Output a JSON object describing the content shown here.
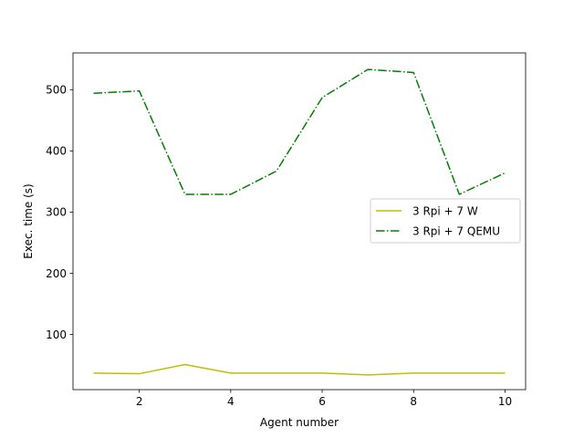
{
  "chart_data": {
    "type": "line",
    "xlabel": "Agent number",
    "ylabel": "Exec. time (s)",
    "xlim": [
      0.55,
      10.45
    ],
    "ylim": [
      10,
      560
    ],
    "xticks": [
      2,
      4,
      6,
      8,
      10
    ],
    "yticks": [
      100,
      200,
      300,
      400,
      500
    ],
    "x": [
      1,
      2,
      3,
      4,
      5,
      6,
      7,
      8,
      9,
      10
    ],
    "grid": false,
    "legend_position": "center-right",
    "series": [
      {
        "name": "3 Rpi + 7 W",
        "color": "#bfbf00",
        "style": "solid",
        "values": [
          37,
          36,
          51,
          37,
          37,
          37,
          34,
          37,
          37,
          37
        ]
      },
      {
        "name": "3 Rpi + 7 QEMU",
        "color": "#008000",
        "style": "dashdot",
        "values": [
          494,
          498,
          329,
          329,
          367,
          487,
          533,
          528,
          329,
          364
        ]
      }
    ]
  }
}
